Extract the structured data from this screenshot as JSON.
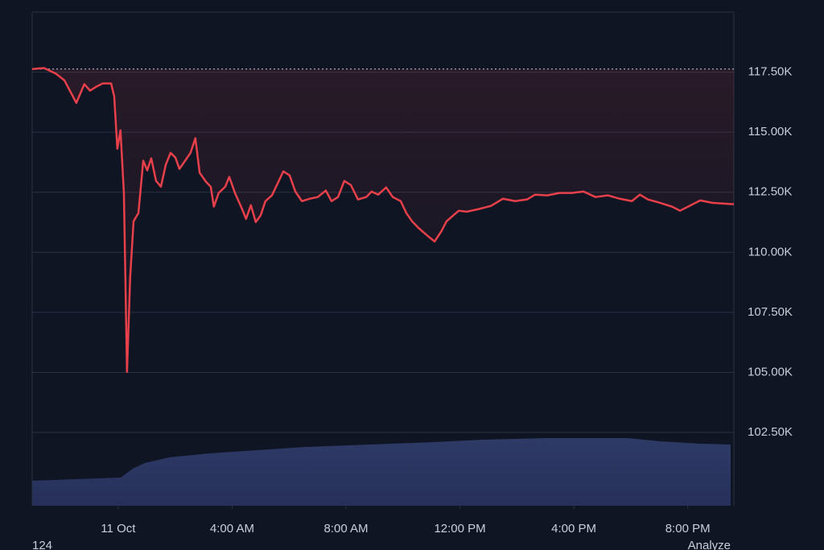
{
  "chart_data": {
    "type": "line",
    "x": [
      -3.02,
      -2.6,
      -2.18,
      -1.89,
      -1.47,
      -1.19,
      -0.99,
      -0.76,
      -0.54,
      -0.25,
      -0.14,
      -0.03,
      0.08,
      0.2,
      0.31,
      0.42,
      0.54,
      0.71,
      0.88,
      1.02,
      1.16,
      1.33,
      1.5,
      1.67,
      1.84,
      2.01,
      2.15,
      2.35,
      2.54,
      2.71,
      2.86,
      3.08,
      3.25,
      3.36,
      3.53,
      3.76,
      3.9,
      4.1,
      4.33,
      4.49,
      4.66,
      4.83,
      5.0,
      5.17,
      5.4,
      5.6,
      5.8,
      6.02,
      6.22,
      6.45,
      6.73,
      7.01,
      7.29,
      7.49,
      7.72,
      7.94,
      8.17,
      8.42,
      8.71,
      8.9,
      9.13,
      9.41,
      9.64,
      9.92,
      10.12,
      10.32,
      10.54,
      10.83,
      11.11,
      11.34,
      11.53,
      11.76,
      11.96,
      12.24,
      12.66,
      13.09,
      13.51,
      13.94,
      14.36,
      14.64,
      15.07,
      15.49,
      15.92,
      16.34,
      16.76,
      17.19,
      17.61,
      18.04,
      18.32,
      18.6,
      19.02,
      19.45,
      19.73,
      20.01,
      20.44,
      20.86,
      21.23,
      21.62
    ],
    "values": [
      117630,
      117670,
      117430,
      117160,
      116220,
      117000,
      116730,
      116900,
      117030,
      117030,
      116490,
      114310,
      115080,
      112470,
      105020,
      108940,
      111290,
      111630,
      113810,
      113410,
      113910,
      112970,
      112730,
      113640,
      114140,
      113940,
      113470,
      113810,
      114140,
      114750,
      113310,
      112940,
      112730,
      111900,
      112470,
      112730,
      113140,
      112470,
      111860,
      111390,
      111960,
      111260,
      111530,
      112130,
      112370,
      112870,
      113370,
      113200,
      112530,
      112130,
      112230,
      112300,
      112570,
      112130,
      112300,
      112970,
      112800,
      112200,
      112300,
      112530,
      112400,
      112700,
      112300,
      112130,
      111630,
      111290,
      111020,
      110720,
      110450,
      110860,
      111290,
      111530,
      111730,
      111690,
      111800,
      111930,
      112230,
      112130,
      112200,
      112400,
      112370,
      112470,
      112470,
      112530,
      112300,
      112370,
      112230,
      112130,
      112400,
      112200,
      112060,
      111900,
      111730,
      111900,
      112160,
      112060,
      112030,
      112000
    ],
    "color": "#e8404a",
    "baseline": 117630,
    "xlim": [
      -3.02,
      21.62
    ],
    "xticks": [
      {
        "value": 0,
        "label": "11 Oct"
      },
      {
        "value": 4,
        "label": "4:00 AM"
      },
      {
        "value": 8,
        "label": "8:00 AM"
      },
      {
        "value": 12,
        "label": "12:00 PM"
      },
      {
        "value": 16,
        "label": "4:00 PM"
      },
      {
        "value": 20,
        "label": "8:00 PM"
      }
    ],
    "ylim": [
      99450,
      120000
    ],
    "yticks": [
      {
        "value": 102500,
        "label": "102.50K"
      },
      {
        "value": 105000,
        "label": "105.00K"
      },
      {
        "value": 107500,
        "label": "107.50K"
      },
      {
        "value": 110000,
        "label": "110.00K"
      },
      {
        "value": 112500,
        "label": "112.50K"
      },
      {
        "value": 115000,
        "label": "115.00K"
      },
      {
        "value": 117500,
        "label": "117.50K"
      }
    ],
    "grid": true,
    "footer_left": "124",
    "footer_right": "Analyze"
  }
}
